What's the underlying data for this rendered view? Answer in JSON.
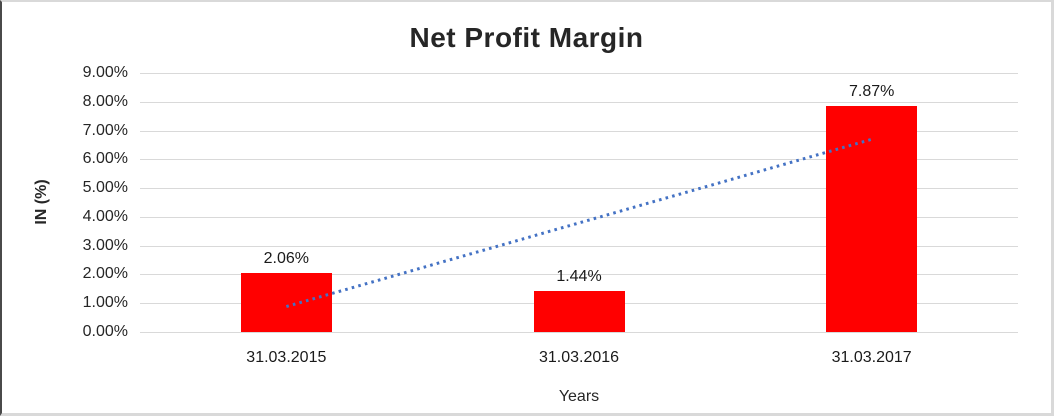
{
  "chart_data": {
    "type": "bar",
    "title": "Net Profit Margin",
    "xlabel": "Years",
    "ylabel": "IN (%)",
    "categories": [
      "31.03.2015",
      "31.03.2016",
      "31.03.2017"
    ],
    "values": [
      2.06,
      1.44,
      7.87
    ],
    "data_labels": [
      "2.06%",
      "1.44%",
      "7.87%"
    ],
    "ylim": [
      0,
      9
    ],
    "yticks": [
      0,
      1,
      2,
      3,
      4,
      5,
      6,
      7,
      8,
      9
    ],
    "ytick_labels": [
      "0.00%",
      "1.00%",
      "2.00%",
      "3.00%",
      "4.00%",
      "5.00%",
      "6.00%",
      "7.00%",
      "8.00%",
      "9.00%"
    ],
    "grid": true,
    "legend": "none",
    "bar_color": "#FF0000",
    "gridline_color": "#D9D9D9",
    "text_color": "#262626",
    "trendline": {
      "type": "linear",
      "style": "dotted",
      "color": "#4472C4",
      "y_start": 0.885,
      "y_end": 6.695
    }
  }
}
